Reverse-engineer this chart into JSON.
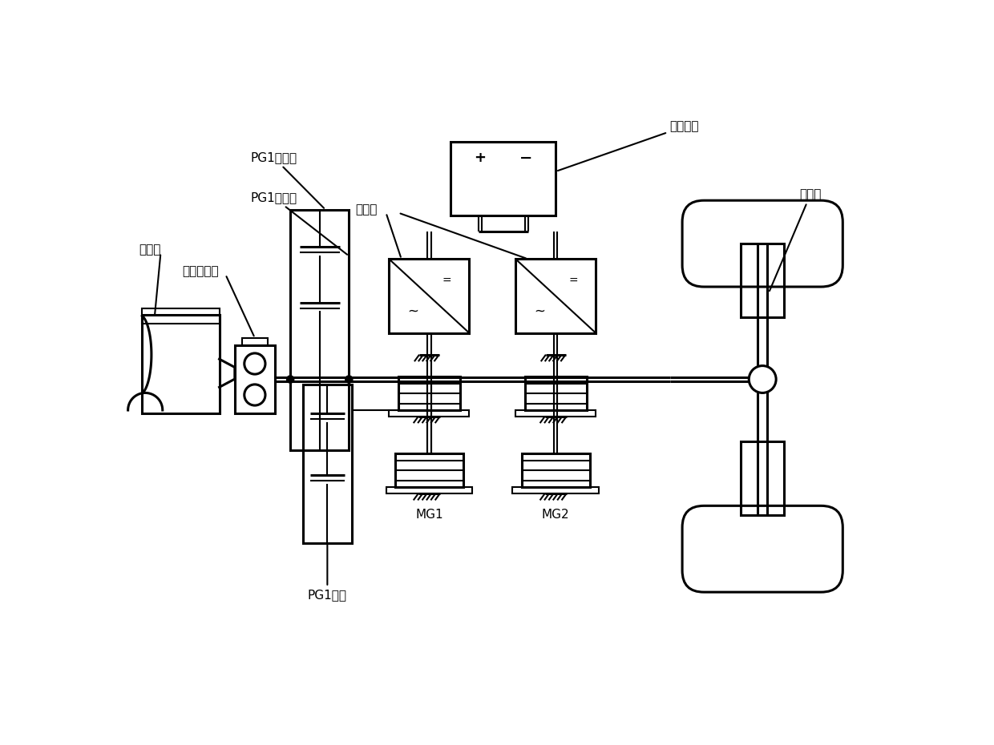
{
  "labels": {
    "battery": "动力电池",
    "inverter": "逆变器",
    "pg1_carrier": "PG1行星架",
    "pg1_sun": "PG1太阳轮",
    "engine": "发动机",
    "damper": "扭转减振器",
    "pg1_ring": "PG1齿圈",
    "mg1": "MG1",
    "mg2": "MG2",
    "output_shaft": "输出轴"
  },
  "bg_color": "#ffffff",
  "lc": "#000000",
  "lw": 1.5,
  "lw2": 2.2
}
